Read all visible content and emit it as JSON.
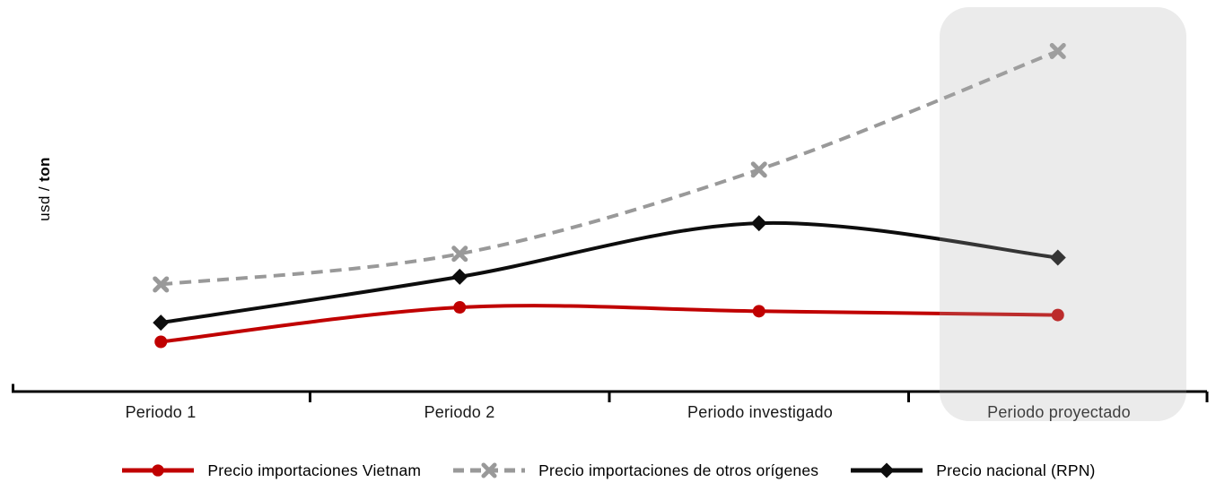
{
  "page": {
    "background": "#ffffff"
  },
  "y_axis": {
    "label_prefix": "usd / ",
    "label_unit": "ton",
    "label_full": "usd / ton"
  },
  "chart_data": {
    "type": "line",
    "title": "",
    "xlabel": "",
    "ylabel": "usd / ton",
    "categories": [
      "Periodo 1",
      "Periodo 2",
      "Periodo investigado",
      "Periodo proyectado"
    ],
    "series": [
      {
        "name": "Precio importaciones Vietnam",
        "color": "#c00000",
        "marker": "circle",
        "line_style": "solid",
        "values": [
          13,
          22,
          21,
          20
        ]
      },
      {
        "name": "Precio importaciones de otros orígenes",
        "color": "#999999",
        "marker": "x",
        "line_style": "dashed",
        "values": [
          28,
          36,
          58,
          89
        ]
      },
      {
        "name": "Precio nacional (RPN)",
        "color": "#0d0d0d",
        "marker": "diamond",
        "line_style": "solid",
        "values": [
          18,
          30,
          44,
          35
        ]
      }
    ],
    "ylim": [
      0,
      100
    ],
    "y_ticks_visible": false,
    "grid": false,
    "legend_position": "bottom",
    "axis_color": "#000000",
    "smoothed_lines": true,
    "value_note": "y-axis has no numeric ticks; series values are relative estimates (0-100 = fraction of plot height)",
    "highlight_region": {
      "category": "Periodo proyectado",
      "category_index": 3,
      "fill": "#afafaf",
      "opacity": 0.25
    }
  }
}
